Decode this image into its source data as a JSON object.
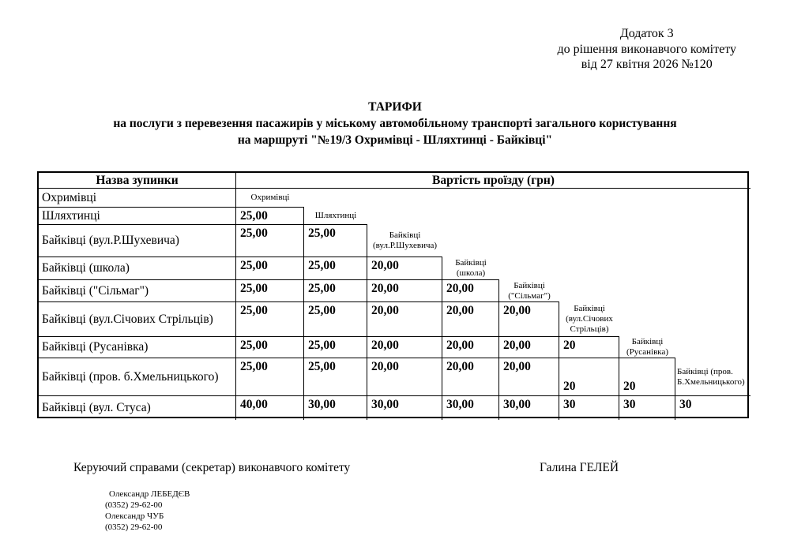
{
  "document": {
    "appendix": [
      "Додаток 3",
      "до рішення виконавчого комітету",
      "від 27 квітня 2026  №120"
    ],
    "title": [
      "ТАРИФИ",
      "на послуги з перевезення пасажирів у міському автомобільному транспорті загального користування",
      "на маршруті \"№19/3  Охримівці - Шляхтинці - Байківці\""
    ],
    "signature_title": "Керуючий справами (секретар) виконавчого комітету",
    "signature_name": "Галина ГЕЛЕЙ",
    "contacts": [
      "Олександр ЛЕБЕДЄВ",
      "(0352) 29-62-00",
      "Олександр ЧУБ",
      "(0352) 29-62-00"
    ]
  },
  "table": {
    "header": {
      "name_col": "Назва зупинки",
      "fare_col": "Вартість проїзду (грн)"
    },
    "currency_note": "грн",
    "rows": [
      {
        "name": "Охримівці",
        "fares": [],
        "diag": "Охримівці"
      },
      {
        "name": "Шляхтинці",
        "fares": [
          "25,00"
        ],
        "diag": "Шляхтинці"
      },
      {
        "name": "Байківці (вул.Р.Шухевича)",
        "fares": [
          "25,00",
          "25,00"
        ],
        "diag": "Байківці\n(вул.Р.Шухевича)"
      },
      {
        "name": "Байківці (школа)",
        "fares": [
          "25,00",
          "25,00",
          "20,00"
        ],
        "diag": "Байківці\n(школа)"
      },
      {
        "name": "Байківці (\"Сільмаг\")",
        "fares": [
          "25,00",
          "25,00",
          "20,00",
          "20,00"
        ],
        "diag": "Байківці\n(\"Сільмаг\")"
      },
      {
        "name": "Байківці (вул.Січових Стрільців)",
        "fares": [
          "25,00",
          "25,00",
          "20,00",
          "20,00",
          "20,00"
        ],
        "diag": "Байківці\n(вул.Січових\nСтрільців)"
      },
      {
        "name": "Байківці (Русанівка)",
        "fares": [
          "25,00",
          "25,00",
          "20,00",
          "20,00",
          "20,00",
          "20"
        ],
        "diag": "Байківці\n(Русанівка)"
      },
      {
        "name": "Байківці (пров. б.Хмельницького)",
        "fares": [
          "25,00",
          "25,00",
          "20,00",
          "20,00",
          "20,00",
          "20",
          "20"
        ],
        "diag": "Байківці (пров.\nБ.Хмельницького)"
      },
      {
        "name": "Байківці (вул. Стуса)",
        "fares": [
          "40,00",
          "30,00",
          "30,00",
          "30,00",
          "30,00",
          "30",
          "30",
          "30"
        ],
        "diag": null
      }
    ]
  }
}
